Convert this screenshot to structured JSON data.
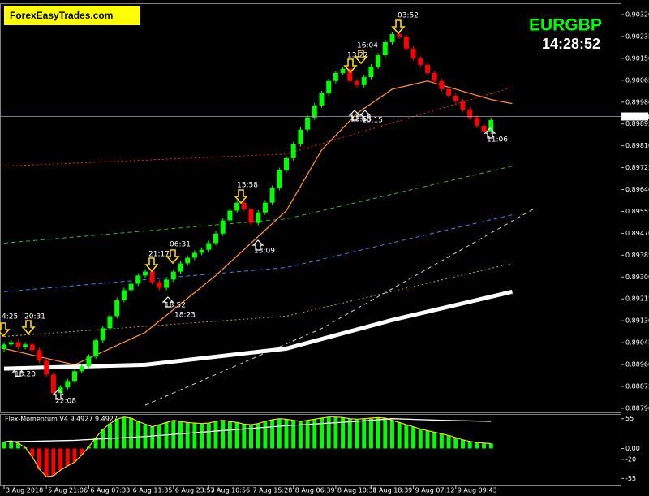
{
  "chart_data": [
    {
      "type": "candlestick",
      "watermark": "ForexEasyTrades.com",
      "symbol": "EURGBP",
      "clock": "14:28:52",
      "categories": [
        null,
        null,
        null,
        null,
        null,
        null,
        null,
        null,
        null,
        null,
        null,
        null,
        null,
        null,
        null,
        null,
        null,
        null,
        null,
        null,
        null,
        null,
        null,
        null,
        null,
        null,
        null,
        null,
        null,
        null,
        null,
        null,
        null,
        null,
        null,
        null,
        null,
        null,
        null,
        null,
        null,
        null,
        null,
        null,
        null,
        null,
        null,
        null,
        null,
        null,
        null,
        null,
        null,
        null,
        null,
        null,
        null,
        null,
        null,
        null,
        null,
        null,
        null,
        null,
        null,
        null,
        null,
        null,
        null,
        null
      ],
      "open": [
        0.8902,
        0.89038,
        0.89047,
        0.89028,
        0.89038,
        0.89016,
        0.88975,
        0.88921,
        0.88849,
        0.88871,
        0.88896,
        0.88934,
        0.88953,
        0.88991,
        0.89054,
        0.89101,
        0.89148,
        0.89211,
        0.89249,
        0.89274,
        0.89306,
        0.89321,
        0.8928,
        0.89258,
        0.8929,
        0.89321,
        0.89353,
        0.89375,
        0.89394,
        0.89406,
        0.89432,
        0.89469,
        0.8952,
        0.89558,
        0.89589,
        0.89564,
        0.8951,
        0.89551,
        0.89589,
        0.89646,
        0.89715,
        0.89762,
        0.89816,
        0.89873,
        0.8992,
        0.89967,
        0.90014,
        0.90062,
        0.90093,
        0.90109,
        0.90062,
        0.90046,
        0.90077,
        0.90118,
        0.90162,
        0.90213,
        0.90244,
        0.90235,
        0.90188,
        0.9015,
        0.90125,
        0.90093,
        0.90062,
        0.9003,
        0.90005,
        0.89983,
        0.89951,
        0.8992,
        0.89888,
        0.89866
      ],
      "close": [
        0.89038,
        0.89047,
        0.89028,
        0.89038,
        0.89016,
        0.88975,
        0.88921,
        0.88849,
        0.88871,
        0.88896,
        0.88934,
        0.88953,
        0.88991,
        0.89054,
        0.89101,
        0.89148,
        0.89211,
        0.89249,
        0.89274,
        0.89306,
        0.89321,
        0.8928,
        0.89258,
        0.8929,
        0.89321,
        0.89353,
        0.89375,
        0.89394,
        0.89406,
        0.89432,
        0.89469,
        0.8952,
        0.89558,
        0.89589,
        0.89564,
        0.8951,
        0.89551,
        0.89589,
        0.89646,
        0.89715,
        0.89762,
        0.89816,
        0.89873,
        0.8992,
        0.89967,
        0.90014,
        0.90062,
        0.90093,
        0.90109,
        0.90062,
        0.90046,
        0.90077,
        0.90118,
        0.90162,
        0.90213,
        0.90244,
        0.90235,
        0.90188,
        0.9015,
        0.90125,
        0.90093,
        0.90062,
        0.9003,
        0.90005,
        0.89983,
        0.89951,
        0.8992,
        0.89888,
        0.89866,
        0.8991
      ],
      "up_color": "#00ff00",
      "down_color": "#ff0000",
      "ylim": [
        0.88774,
        0.90361
      ],
      "yticks": [
        {
          "value": 0.8879,
          "label": "0.88790"
        },
        {
          "value": 0.88875,
          "label": "0.88875"
        },
        {
          "value": 0.8896,
          "label": "0.88960"
        },
        {
          "value": 0.89045,
          "label": "0.89045"
        },
        {
          "value": 0.8913,
          "label": "0.89130"
        },
        {
          "value": 0.89215,
          "label": "0.89215"
        },
        {
          "value": 0.893,
          "label": "0.89300"
        },
        {
          "value": 0.89385,
          "label": "0.89385"
        },
        {
          "value": 0.8947,
          "label": "0.89470"
        },
        {
          "value": 0.89555,
          "label": "0.89555"
        },
        {
          "value": 0.8964,
          "label": "0.89640"
        },
        {
          "value": 0.89725,
          "label": "0.89725"
        },
        {
          "value": 0.8981,
          "label": "0.89810"
        },
        {
          "value": 0.89895,
          "label": "0.89895"
        },
        {
          "value": 0.8998,
          "label": "0.89980"
        },
        {
          "value": 0.90065,
          "label": "0.90065"
        },
        {
          "value": 0.9015,
          "label": "0.90150"
        },
        {
          "value": 0.90235,
          "label": "0.90235"
        },
        {
          "value": 0.9032,
          "label": "0.90320"
        }
      ],
      "xticks": [
        {
          "value": 0,
          "label": "3 Aug 2018"
        },
        {
          "value": 6,
          "label": "5 Aug 21:06"
        },
        {
          "value": 12,
          "label": "6 Aug 07:33"
        },
        {
          "value": 18,
          "label": "6 Aug 11:35"
        },
        {
          "value": 24,
          "label": "6 Aug 23:53"
        },
        {
          "value": 29,
          "label": "7 Aug 10:56"
        },
        {
          "value": 35,
          "label": "7 Aug 15:28"
        },
        {
          "value": 41,
          "label": "8 Aug 06:39"
        },
        {
          "value": 47,
          "label": "8 Aug 10:31"
        },
        {
          "value": 52,
          "label": "8 Aug 18:39"
        },
        {
          "value": 58,
          "label": "9 Aug 07:12"
        },
        {
          "value": 64,
          "label": "9 Aug 09:43"
        }
      ],
      "current_price": {
        "value": 0.89924,
        "label": "0.89924"
      },
      "lines": [
        {
          "color": "#ff2020",
          "style": "dotted",
          "x": [
            0,
            40,
            72
          ],
          "values": [
            0.89731,
            0.89778,
            0.90037
          ]
        },
        {
          "color": "#20c020",
          "style": "dashed",
          "x": [
            0,
            40,
            72
          ],
          "values": [
            0.89432,
            0.89526,
            0.89731
          ]
        },
        {
          "color": "#2090ff",
          "style": "dashed",
          "x": [
            0,
            40,
            72
          ],
          "values": [
            0.89243,
            0.89337,
            0.89542
          ]
        },
        {
          "color": "#d0a020",
          "style": "dotted",
          "x": [
            0,
            40,
            72
          ],
          "values": [
            0.89069,
            0.89148,
            0.89353
          ]
        },
        {
          "color": "#d0d0d0",
          "style": "dashed",
          "x": [
            20,
            45,
            75
          ],
          "values": [
            0.88802,
            0.891,
            0.89564
          ]
        },
        {
          "color": "#ff9020",
          "style": "solid",
          "x": [
            0,
            10,
            20,
            30,
            40,
            45,
            50,
            55,
            60,
            69,
            72
          ],
          "values": [
            0.89022,
            0.88959,
            0.89085,
            0.89306,
            0.89558,
            0.89794,
            0.89936,
            0.9003,
            0.90062,
            0.8999,
            0.89974
          ]
        },
        {
          "color": "#ffffff",
          "style": "thick",
          "x": [
            0,
            20,
            40,
            55,
            72
          ],
          "values": [
            0.88944,
            0.88959,
            0.89022,
            0.89133,
            0.89243
          ]
        }
      ],
      "annotations": [
        "4:25",
        "20:31",
        "13:20",
        "22:08",
        "21:17",
        "06:31",
        "13:52",
        "18:23",
        "15:58",
        "13:09",
        "13:22",
        "16:04",
        "13:53",
        "15:15",
        "03:52",
        "11:06"
      ]
    },
    {
      "type": "bar",
      "label": "Flex-Momentum V4 9.4927 9.4927",
      "values": [
        12,
        14,
        10,
        2,
        -15,
        -38,
        -52,
        -50,
        -40,
        -32,
        -25,
        -12,
        3,
        20,
        35,
        46,
        54,
        58,
        56,
        50,
        45,
        40,
        44,
        48,
        52,
        50,
        48,
        47,
        46,
        47,
        50,
        52,
        50,
        48,
        45,
        44,
        46,
        50,
        53,
        55,
        54,
        52,
        50,
        52,
        54,
        56,
        58,
        58,
        57,
        55,
        54,
        55,
        56,
        57,
        56,
        52,
        48,
        44,
        40,
        36,
        33,
        30,
        27,
        24,
        20,
        16,
        13,
        11,
        10,
        9
      ],
      "pos_color": "#00ff00",
      "neg_color": "#ff0000",
      "outline_color": "#ffd700",
      "line": {
        "color": "#ffffff",
        "x": [
          0,
          10,
          20,
          30,
          40,
          50,
          55,
          62,
          69
        ],
        "values": [
          12,
          15,
          22,
          32,
          42,
          50,
          55,
          52,
          50
        ]
      },
      "ylim": [
        -68,
        62
      ],
      "yticks": [
        55,
        {
          "value": 0,
          "label": "0.00"
        },
        -20,
        -55
      ]
    }
  ]
}
